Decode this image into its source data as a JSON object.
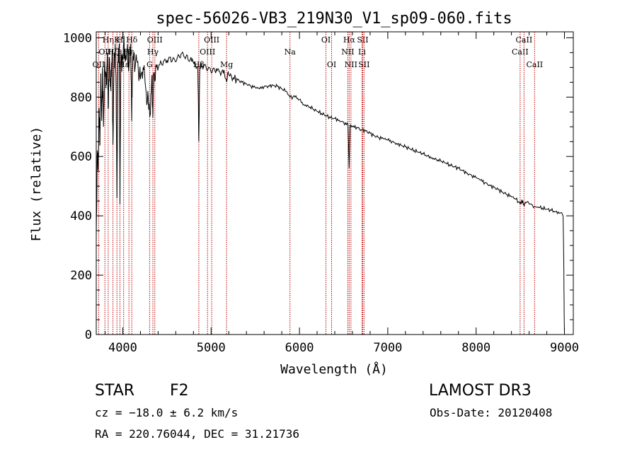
{
  "chart_data": {
    "type": "line",
    "title": "spec-56026-VB3_219N30_V1_sp09-060.fits",
    "xlabel": "Wavelength (Å)",
    "ylabel": "Flux (relative)",
    "xlim": [
      3700,
      9100
    ],
    "ylim": [
      0,
      1020
    ],
    "xticks": [
      4000,
      5000,
      6000,
      7000,
      8000,
      9000
    ],
    "yticks": [
      0,
      200,
      400,
      600,
      800,
      1000
    ],
    "xtick_labels": [
      "4000",
      "5000",
      "6000",
      "7000",
      "8000",
      "9000"
    ],
    "ytick_labels": [
      "0",
      "200",
      "400",
      "600",
      "800",
      "1000"
    ],
    "series": [
      {
        "name": "spectrum",
        "points": [
          [
            3700,
            330
          ],
          [
            3712,
            620
          ],
          [
            3722,
            560
          ],
          [
            3732,
            760
          ],
          [
            3742,
            640
          ],
          [
            3752,
            880
          ],
          [
            3762,
            720
          ],
          [
            3772,
            900
          ],
          [
            3782,
            700
          ],
          [
            3795,
            920
          ],
          [
            3810,
            830
          ],
          [
            3825,
            950
          ],
          [
            3835,
            760
          ],
          [
            3850,
            930
          ],
          [
            3865,
            820
          ],
          [
            3880,
            960
          ],
          [
            3889,
            640
          ],
          [
            3900,
            900
          ],
          [
            3915,
            980
          ],
          [
            3925,
            820
          ],
          [
            3934,
            460
          ],
          [
            3945,
            920
          ],
          [
            3960,
            980
          ],
          [
            3968,
            440
          ],
          [
            3980,
            960
          ],
          [
            3995,
            900
          ],
          [
            4010,
            980
          ],
          [
            4030,
            920
          ],
          [
            4050,
            960
          ],
          [
            4070,
            900
          ],
          [
            4090,
            980
          ],
          [
            4101,
            720
          ],
          [
            4115,
            940
          ],
          [
            4140,
            900
          ],
          [
            4170,
            920
          ],
          [
            4200,
            860
          ],
          [
            4230,
            900
          ],
          [
            4260,
            830
          ],
          [
            4290,
            790
          ],
          [
            4310,
            740
          ],
          [
            4330,
            870
          ],
          [
            4340,
            730
          ],
          [
            4350,
            880
          ],
          [
            4380,
            900
          ],
          [
            4420,
            910
          ],
          [
            4460,
            920
          ],
          [
            4500,
            925
          ],
          [
            4540,
            935
          ],
          [
            4580,
            930
          ],
          [
            4620,
            935
          ],
          [
            4660,
            945
          ],
          [
            4700,
            935
          ],
          [
            4740,
            925
          ],
          [
            4780,
            920
          ],
          [
            4820,
            915
          ],
          [
            4850,
            900
          ],
          [
            4861,
            650
          ],
          [
            4872,
            900
          ],
          [
            4900,
            905
          ],
          [
            4940,
            905
          ],
          [
            4980,
            900
          ],
          [
            5020,
            895
          ],
          [
            5060,
            895
          ],
          [
            5100,
            885
          ],
          [
            5140,
            880
          ],
          [
            5170,
            860
          ],
          [
            5200,
            875
          ],
          [
            5250,
            865
          ],
          [
            5300,
            858
          ],
          [
            5350,
            850
          ],
          [
            5400,
            845
          ],
          [
            5450,
            838
          ],
          [
            5500,
            832
          ],
          [
            5550,
            828
          ],
          [
            5600,
            835
          ],
          [
            5650,
            838
          ],
          [
            5700,
            840
          ],
          [
            5750,
            836
          ],
          [
            5800,
            828
          ],
          [
            5850,
            820
          ],
          [
            5893,
            800
          ],
          [
            5950,
            800
          ],
          [
            6000,
            792
          ],
          [
            6050,
            775
          ],
          [
            6100,
            770
          ],
          [
            6150,
            760
          ],
          [
            6200,
            752
          ],
          [
            6250,
            745
          ],
          [
            6300,
            738
          ],
          [
            6350,
            730
          ],
          [
            6400,
            728
          ],
          [
            6450,
            722
          ],
          [
            6500,
            715
          ],
          [
            6550,
            705
          ],
          [
            6563,
            560
          ],
          [
            6575,
            705
          ],
          [
            6600,
            700
          ],
          [
            6650,
            698
          ],
          [
            6700,
            690
          ],
          [
            6750,
            686
          ],
          [
            6800,
            678
          ],
          [
            6850,
            670
          ],
          [
            6900,
            664
          ],
          [
            6950,
            660
          ],
          [
            7000,
            655
          ],
          [
            7050,
            650
          ],
          [
            7100,
            644
          ],
          [
            7150,
            638
          ],
          [
            7200,
            632
          ],
          [
            7250,
            626
          ],
          [
            7300,
            620
          ],
          [
            7350,
            614
          ],
          [
            7400,
            608
          ],
          [
            7450,
            602
          ],
          [
            7500,
            596
          ],
          [
            7550,
            590
          ],
          [
            7600,
            584
          ],
          [
            7650,
            578
          ],
          [
            7700,
            572
          ],
          [
            7750,
            566
          ],
          [
            7800,
            560
          ],
          [
            7850,
            552
          ],
          [
            7900,
            544
          ],
          [
            7950,
            536
          ],
          [
            8000,
            528
          ],
          [
            8050,
            520
          ],
          [
            8100,
            512
          ],
          [
            8150,
            504
          ],
          [
            8200,
            496
          ],
          [
            8250,
            488
          ],
          [
            8300,
            480
          ],
          [
            8350,
            472
          ],
          [
            8400,
            464
          ],
          [
            8450,
            456
          ],
          [
            8498,
            440
          ],
          [
            8520,
            450
          ],
          [
            8542,
            436
          ],
          [
            8560,
            446
          ],
          [
            8600,
            440
          ],
          [
            8662,
            432
          ],
          [
            8700,
            430
          ],
          [
            8750,
            426
          ],
          [
            8800,
            422
          ],
          [
            8850,
            418
          ],
          [
            8900,
            414
          ],
          [
            8950,
            410
          ],
          [
            8985,
            400
          ],
          [
            8992,
            250
          ],
          [
            8998,
            30
          ],
          [
            9000,
            5
          ]
        ]
      }
    ],
    "line_markers": [
      {
        "wave": 3727,
        "row": 2,
        "label": "OII"
      },
      {
        "wave": 3798,
        "row": 1,
        "label": "OII"
      },
      {
        "wave": 3835,
        "row": 0,
        "label": "Hη"
      },
      {
        "wave": 3889,
        "row": 1,
        "label": "Hζ"
      },
      {
        "wave": 3934,
        "row": 0,
        "label": "K"
      },
      {
        "wave": 3968,
        "row": 0,
        "label": "H"
      },
      {
        "wave": 4010,
        "row": 2,
        "label": "Hε"
      },
      {
        "wave": 4070,
        "row": 1,
        "label": "Hε"
      },
      {
        "wave": 4102,
        "row": 0,
        "label": "Hδ"
      },
      {
        "wave": 4304,
        "row": 2,
        "label": "G"
      },
      {
        "wave": 4341,
        "row": 1,
        "label": "Hγ"
      },
      {
        "wave": 4363,
        "row": 0,
        "label": "OIII"
      },
      {
        "wave": 4861,
        "row": 2,
        "label": "Hβ"
      },
      {
        "wave": 4959,
        "row": 1,
        "label": "OIII"
      },
      {
        "wave": 5007,
        "row": 0,
        "label": "OIII"
      },
      {
        "wave": 5175,
        "row": 2,
        "label": "Mg"
      },
      {
        "wave": 5893,
        "row": 1,
        "label": "Na"
      },
      {
        "wave": 6300,
        "row": 0,
        "label": "OI"
      },
      {
        "wave": 6364,
        "row": 2,
        "label": "OI"
      },
      {
        "wave": 6548,
        "row": 1,
        "label": "NII"
      },
      {
        "wave": 6563,
        "row": 0,
        "label": "Hα"
      },
      {
        "wave": 6583,
        "row": 2,
        "label": "NII"
      },
      {
        "wave": 6708,
        "row": 1,
        "label": "Li"
      },
      {
        "wave": 6716,
        "row": 0,
        "label": "SII"
      },
      {
        "wave": 6731,
        "row": 2,
        "label": "SII"
      },
      {
        "wave": 8498,
        "row": 1,
        "label": "CaII"
      },
      {
        "wave": 8542,
        "row": 0,
        "label": "CaII"
      },
      {
        "wave": 8662,
        "row": 2,
        "label": "CaII"
      }
    ],
    "colors": {
      "spectrum": "#000000",
      "markers": "#c00000",
      "axes": "#000000"
    }
  },
  "info": {
    "object_class": "STAR",
    "subclass": "F2",
    "survey": "LAMOST DR3",
    "velocity": "cz = −18.0 ± 6.2 km/s",
    "obs_date": "Obs-Date: 20120408",
    "coords": "RA = 220.76044, DEC =  31.21736"
  }
}
